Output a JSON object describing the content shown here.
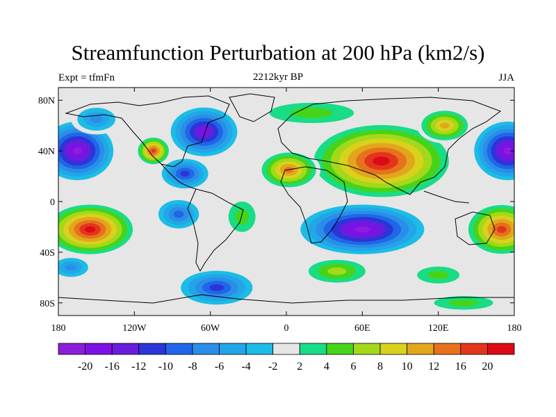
{
  "title": "Streamfunction Perturbation at 200 hPa (km2/s)",
  "subtitle_center": "2212kyr BP",
  "subtitle_left": "Expt = tfmFn",
  "subtitle_right": "JJA",
  "y_axis": {
    "ticks": [
      {
        "value": 80,
        "label": "80N"
      },
      {
        "value": 40,
        "label": "40N"
      },
      {
        "value": 0,
        "label": "0"
      },
      {
        "value": -40,
        "label": "40S"
      },
      {
        "value": -80,
        "label": "80S"
      }
    ]
  },
  "x_axis": {
    "ticks": [
      {
        "value": -180,
        "label": "180"
      },
      {
        "value": -120,
        "label": "120W"
      },
      {
        "value": -60,
        "label": "60W"
      },
      {
        "value": 0,
        "label": "0"
      },
      {
        "value": 60,
        "label": "60E"
      },
      {
        "value": 120,
        "label": "120E"
      },
      {
        "value": 180,
        "label": "180"
      }
    ]
  },
  "colorbar": {
    "colors": [
      "#8c1ed9",
      "#7d10e6",
      "#6a1cdc",
      "#2a36d7",
      "#1f66e8",
      "#2a8ee8",
      "#22a6e8",
      "#1cbce6",
      "#e6e6e6",
      "#19dc86",
      "#46d41a",
      "#a4d81a",
      "#d8d21c",
      "#e2a61c",
      "#e6721c",
      "#e2361c",
      "#dc0a14"
    ],
    "labels": [
      "-20",
      "-16",
      "-12",
      "-10",
      "-8",
      "-6",
      "-4",
      "-2",
      "2",
      "4",
      "6",
      "8",
      "10",
      "12",
      "16",
      "20"
    ]
  },
  "map_data": {
    "lon_range": [
      -180,
      180
    ],
    "lat_range": [
      -90,
      90
    ],
    "background_level": 8,
    "blobs": [
      {
        "name": "n-pacific-low",
        "lon": -165,
        "lat": 40,
        "rlon": 32,
        "rlat": 26,
        "levels": [
          8,
          7,
          6,
          5,
          4,
          3,
          2,
          1,
          0
        ]
      },
      {
        "name": "n-pacific-low-east",
        "lon": 175,
        "lat": 40,
        "rlon": 30,
        "rlat": 26,
        "levels": [
          8,
          7,
          6,
          5,
          4,
          3,
          2,
          1,
          0
        ]
      },
      {
        "name": "s-pacific-high",
        "lon": -155,
        "lat": -22,
        "rlon": 38,
        "rlat": 22,
        "levels": [
          8,
          9,
          10,
          11,
          12,
          13,
          14,
          15,
          16
        ]
      },
      {
        "name": "sw-pacific-high",
        "lon": 170,
        "lat": -22,
        "rlon": 30,
        "rlat": 22,
        "levels": [
          8,
          9,
          10,
          11,
          12,
          13,
          14,
          15
        ]
      },
      {
        "name": "canada-low",
        "lon": -65,
        "lat": 55,
        "rlon": 30,
        "rlat": 22,
        "levels": [
          8,
          7,
          6,
          5,
          4,
          3,
          2,
          1
        ]
      },
      {
        "name": "n-pacific-east-high",
        "lon": -105,
        "lat": 40,
        "rlon": 14,
        "rlat": 12,
        "levels": [
          8,
          9,
          10,
          11,
          12,
          13,
          14,
          15
        ]
      },
      {
        "name": "caribbean-low",
        "lon": -80,
        "lat": 22,
        "rlon": 22,
        "rlat": 14,
        "levels": [
          8,
          7,
          6,
          5,
          4,
          3
        ]
      },
      {
        "name": "asia-high",
        "lon": 75,
        "lat": 32,
        "rlon": 60,
        "rlat": 32,
        "levels": [
          8,
          9,
          10,
          11,
          12,
          13,
          14,
          15,
          16
        ]
      },
      {
        "name": "n-africa-high",
        "lon": 2,
        "lat": 25,
        "rlon": 25,
        "rlat": 16,
        "levels": [
          8,
          9,
          10,
          11,
          12,
          13,
          14
        ]
      },
      {
        "name": "siberia-high",
        "lon": 125,
        "lat": 60,
        "rlon": 22,
        "rlat": 14,
        "levels": [
          8,
          9,
          10,
          11,
          12,
          13
        ]
      },
      {
        "name": "indian-ocean-low",
        "lon": 60,
        "lat": -22,
        "rlon": 55,
        "rlat": 22,
        "levels": [
          8,
          7,
          6,
          5,
          4,
          3,
          2,
          1,
          0
        ]
      },
      {
        "name": "s-atlantic-low",
        "lon": -85,
        "lat": -10,
        "rlon": 20,
        "rlat": 14,
        "levels": [
          8,
          7,
          6,
          5,
          4
        ]
      },
      {
        "name": "south-atlantic-pos",
        "lon": -35,
        "lat": -12,
        "rlon": 16,
        "rlat": 18,
        "levels": [
          8,
          9,
          10
        ]
      },
      {
        "name": "southern-ocean-low",
        "lon": -55,
        "lat": -68,
        "rlon": 34,
        "rlat": 16,
        "levels": [
          8,
          7,
          6,
          5,
          4,
          3
        ]
      },
      {
        "name": "s-indian-pos",
        "lon": 40,
        "lat": -55,
        "rlon": 30,
        "rlat": 12,
        "levels": [
          8,
          9,
          10,
          11
        ]
      },
      {
        "name": "s-indian-pos2",
        "lon": 120,
        "lat": -58,
        "rlon": 25,
        "rlat": 10,
        "levels": [
          8,
          9,
          10
        ]
      },
      {
        "name": "sw-pacific-low",
        "lon": -170,
        "lat": -52,
        "rlon": 18,
        "rlat": 10,
        "levels": [
          8,
          7,
          6,
          5
        ]
      },
      {
        "name": "ne-pacific-low",
        "lon": -150,
        "lat": 65,
        "rlon": 20,
        "rlat": 12,
        "levels": [
          8,
          7,
          6,
          5
        ]
      },
      {
        "name": "arctic-pos",
        "lon": 20,
        "lat": 70,
        "rlon": 50,
        "rlat": 12,
        "levels": [
          8,
          9,
          10
        ]
      },
      {
        "name": "antarctic-pos",
        "lon": 140,
        "lat": -80,
        "rlon": 35,
        "rlat": 8,
        "levels": [
          8,
          9,
          10
        ]
      }
    ]
  }
}
